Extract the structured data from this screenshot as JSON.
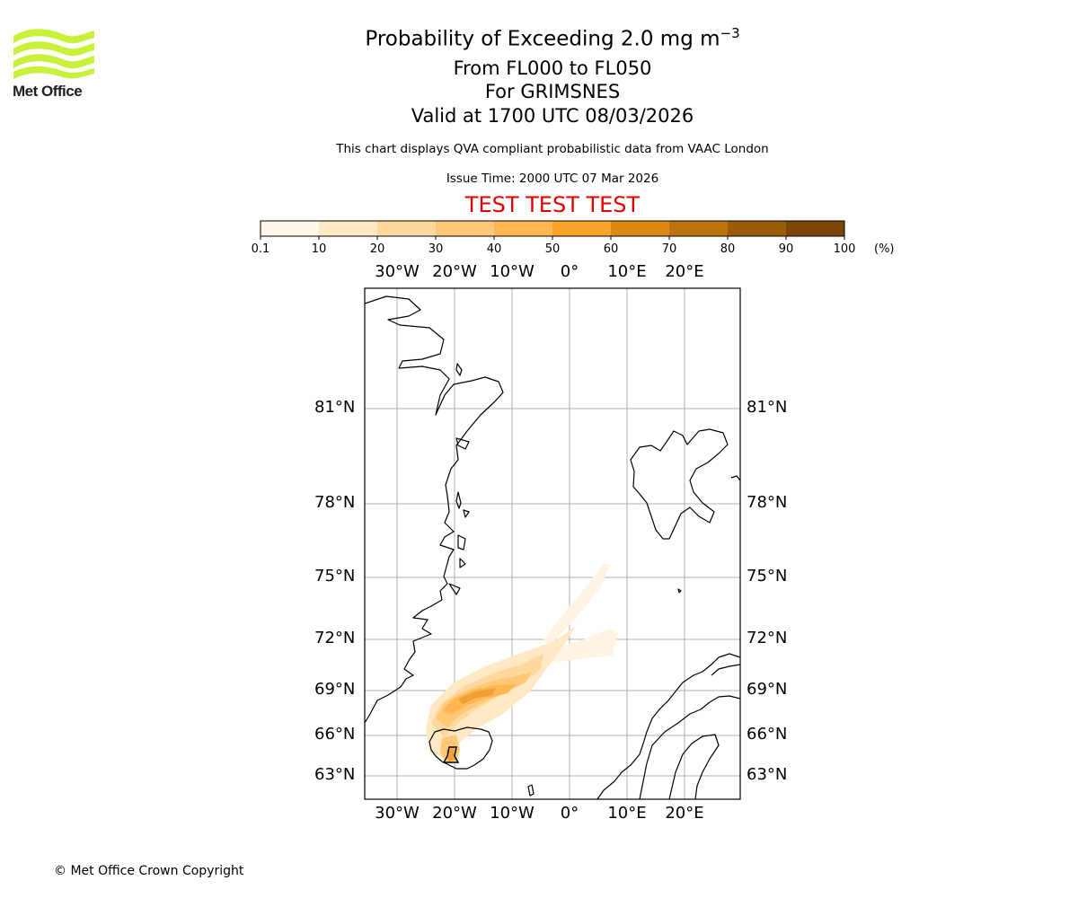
{
  "header": {
    "title_main": "Probability of Exceeding 2.0 mg m",
    "title_sup": "−3",
    "level_range": "From FL000 to FL050",
    "location": "For GRIMSNES",
    "valid_time": "Valid at 1700 UTC 08/03/2026",
    "description": "This chart displays QVA compliant probabilistic data from VAAC London",
    "issue_time": "Issue Time: 2000 UTC 07 Mar 2026",
    "test_banner": "TEST TEST TEST"
  },
  "logo": {
    "text": "Met Office",
    "color": "#c8f23a"
  },
  "colorbar": {
    "ticks": [
      "0.1",
      "10",
      "20",
      "30",
      "40",
      "50",
      "60",
      "70",
      "80",
      "90",
      "100"
    ],
    "unit": "(%)",
    "colors": [
      "#fff8ea",
      "#ffe8c4",
      "#ffd89e",
      "#ffc878",
      "#ffb650",
      "#f9a327",
      "#dc8a14",
      "#bd730c",
      "#9b5c07",
      "#7b4605"
    ]
  },
  "map": {
    "lon_labels": [
      "30°W",
      "20°W",
      "10°W",
      "0°",
      "10°E",
      "20°E"
    ],
    "lat_labels": [
      "81°N",
      "78°N",
      "75°N",
      "72°N",
      "69°N",
      "66°N",
      "63°N"
    ],
    "source_marker": "volcano-source"
  },
  "footer": {
    "copyright": "© Met Office Crown Copyright"
  }
}
